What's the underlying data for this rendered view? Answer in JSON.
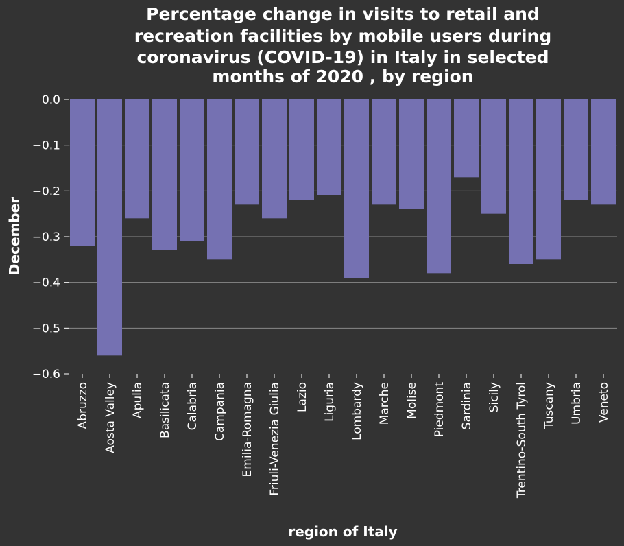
{
  "chart_data": {
    "type": "bar",
    "title_lines": [
      "Percentage change in visits to retail and",
      "recreation facilities by mobile users during",
      "coronavirus (COVID-19) in Italy in selected",
      "months of 2020 , by region"
    ],
    "xlabel": "region of Italy",
    "ylabel": "December",
    "categories": [
      "Abruzzo",
      "Aosta Valley",
      "Apulia",
      "Basilicata",
      "Calabria",
      "Campania",
      "Emilia-Romagna",
      "Friuli-Venezia Giulia",
      "Lazio",
      "Liguria",
      "Lombardy",
      "Marche",
      "Molise",
      "Piedmont",
      "Sardinia",
      "Sicily",
      "Trentino-South Tyrol",
      "Tuscany",
      "Umbria",
      "Veneto"
    ],
    "values": [
      -0.32,
      -0.56,
      -0.26,
      -0.33,
      -0.31,
      -0.35,
      -0.23,
      -0.26,
      -0.22,
      -0.21,
      -0.39,
      -0.23,
      -0.24,
      -0.38,
      -0.17,
      -0.25,
      -0.36,
      -0.35,
      -0.22,
      -0.23
    ],
    "ylim": [
      -0.6,
      0.0
    ],
    "yticks": [
      0.0,
      -0.1,
      -0.2,
      -0.3,
      -0.4,
      -0.5,
      -0.6
    ],
    "ytick_labels": [
      "0.0",
      "−0.1",
      "−0.2",
      "−0.3",
      "−0.4",
      "−0.5",
      "−0.6"
    ],
    "grid": true,
    "colors": {
      "bar": "#7571b2",
      "background": "#333333",
      "grid": "#8a8a8a",
      "text": "#ffffff"
    }
  }
}
